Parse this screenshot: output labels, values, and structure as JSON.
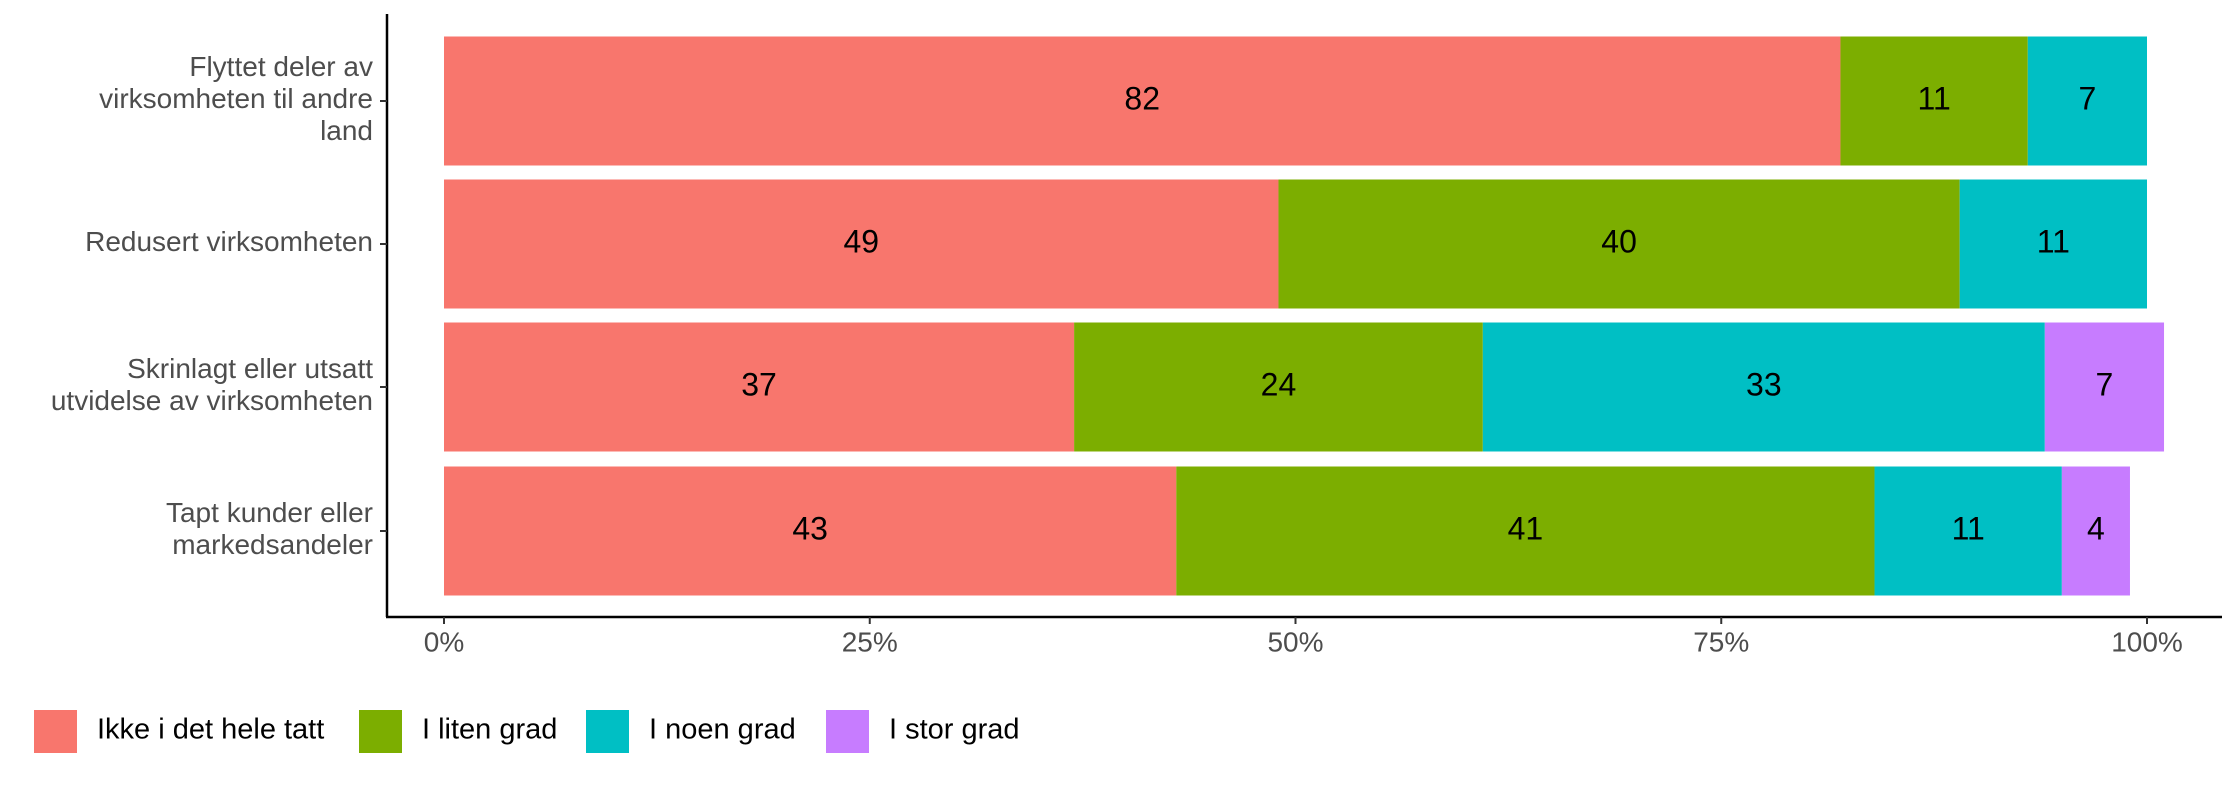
{
  "chart_data": {
    "type": "stacked-bar-horizontal",
    "categories": [
      "Flyttet deler av\nvirksomheten til andre\nland",
      "Redusert virksomheten",
      "Skrinlagt eller utsatt\nutvidelse av virksomheten",
      "Tapt kunder eller\nmarkedsandeler"
    ],
    "series": [
      {
        "name": "Ikke i det hele tatt",
        "color": "#F8766D",
        "values": [
          82,
          49,
          37,
          43
        ]
      },
      {
        "name": "I liten grad",
        "color": "#7CAE00",
        "values": [
          11,
          40,
          24,
          41
        ]
      },
      {
        "name": "I noen grad",
        "color": "#00BFC4",
        "values": [
          7,
          11,
          33,
          11
        ]
      },
      {
        "name": "I stor grad",
        "color": "#C77CFF",
        "values": [
          null,
          null,
          7,
          4
        ]
      }
    ],
    "xlim": [
      0,
      100
    ],
    "xticks": [
      {
        "value": 0,
        "label": "0%"
      },
      {
        "value": 25,
        "label": "25%"
      },
      {
        "value": 50,
        "label": "50%"
      },
      {
        "value": 75,
        "label": "75%"
      },
      {
        "value": 100,
        "label": "100%"
      }
    ],
    "legend": "bottom"
  }
}
